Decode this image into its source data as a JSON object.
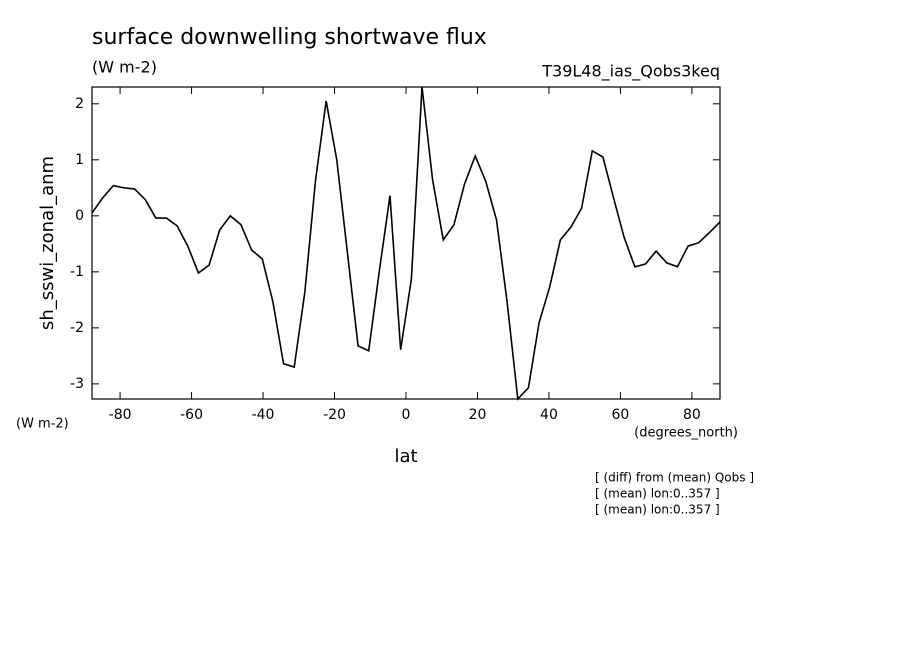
{
  "chart_data": {
    "type": "line",
    "title": "surface downwelling shortwave flux",
    "subtitle": "(W m-2)",
    "experiment": "T39L48_ias_Qobs3keq",
    "y_label": "sh_sswi_zonal_anm",
    "y_unit": "(W m-2)",
    "x_label": "lat",
    "x_unit": "(degrees_north)",
    "notes": [
      "[ (diff) from (mean) Qobs ]",
      "[ (mean) lon:0..357 ]",
      "[ (mean) lon:0..357 ]"
    ],
    "x": [
      -87.86,
      -84.88,
      -81.9,
      -78.93,
      -75.95,
      -72.97,
      -69.99,
      -67.01,
      -64.04,
      -61.06,
      -58.08,
      -55.1,
      -52.12,
      -49.15,
      -46.17,
      -43.19,
      -40.21,
      -37.23,
      -34.26,
      -31.28,
      -28.3,
      -25.32,
      -22.34,
      -19.37,
      -16.39,
      -13.41,
      -10.43,
      -7.45,
      -4.48,
      -1.5,
      1.5,
      4.48,
      7.45,
      10.43,
      13.41,
      16.39,
      19.37,
      22.34,
      25.32,
      28.3,
      31.28,
      34.26,
      37.23,
      40.21,
      43.19,
      46.17,
      49.15,
      52.12,
      55.1,
      58.08,
      61.06,
      64.04,
      67.01,
      69.99,
      72.97,
      75.95,
      78.93,
      81.9,
      84.88,
      87.86
    ],
    "values": [
      0.05,
      0.32,
      0.54,
      0.5,
      0.48,
      0.29,
      -0.04,
      -0.04,
      -0.18,
      -0.54,
      -1.02,
      -0.88,
      -0.25,
      0,
      -0.16,
      -0.61,
      -0.77,
      -1.54,
      -2.64,
      -2.7,
      -1.36,
      0.63,
      2.05,
      1.0,
      -0.66,
      -2.32,
      -2.41,
      -0.98,
      0.36,
      -2.39,
      -1.13,
      2.3,
      0.64,
      -0.43,
      -0.16,
      0.57,
      1.07,
      0.61,
      -0.07,
      -1.54,
      -3.27,
      -3.07,
      -1.91,
      -1.27,
      -0.43,
      -0.2,
      0.14,
      1.16,
      1.05,
      0.32,
      -0.39,
      -0.91,
      -0.86,
      -0.63,
      -0.84,
      -0.91,
      -0.54,
      -0.48,
      -0.3,
      -0.11
    ],
    "color": "#000000",
    "xlim": [
      -87.86,
      87.86
    ],
    "xticks": [
      -80,
      -60,
      -40,
      -20,
      0,
      20,
      40,
      60,
      80
    ],
    "ylim": [
      -3.27,
      2.3
    ],
    "yticks": [
      -3,
      -2,
      -1,
      0,
      1,
      2
    ],
    "grid": false
  }
}
